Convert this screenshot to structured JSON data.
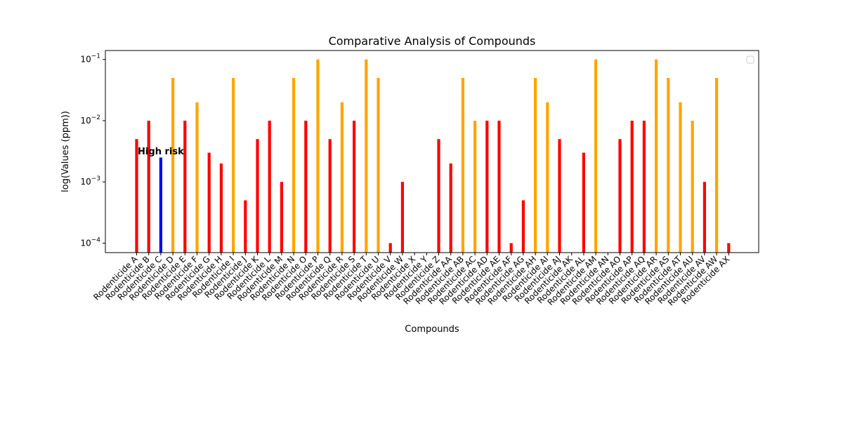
{
  "chart_data": {
    "type": "bar",
    "title": "Comparative Analysis of Compounds",
    "xlabel": "Compounds",
    "ylabel": "log(Values (ppm))",
    "yscale": "log",
    "ylim": [
      7e-05,
      0.14
    ],
    "yticks": [
      {
        "value": 0.0001,
        "base": "10",
        "exp": "−4"
      },
      {
        "value": 0.001,
        "base": "10",
        "exp": "−3"
      },
      {
        "value": 0.01,
        "base": "10",
        "exp": "−2"
      },
      {
        "value": 0.1,
        "base": "10",
        "exp": "−1"
      }
    ],
    "legend": "top-right",
    "grid": false,
    "categories": [
      "Rodenticide A",
      "Rodenticide B",
      "Rodenticide C",
      "Rodenticide D",
      "Rodenticide E",
      "Rodenticide F",
      "Rodenticide G",
      "Rodenticide H",
      "Rodenticide I",
      "Rodenticide J",
      "Rodenticide K",
      "Rodenticide L",
      "Rodenticide M",
      "Rodenticide N",
      "Rodenticide O",
      "Rodenticide P",
      "Rodenticide Q",
      "Rodenticide R",
      "Rodenticide S",
      "Rodenticide T",
      "Rodenticide U",
      "Rodenticide V",
      "Rodenticide W",
      "Rodenticide X",
      "Rodenticide Y",
      "Rodenticide Z",
      "Rodenticide AA",
      "Rodenticide AB",
      "Rodenticide AC",
      "Rodenticide AD",
      "Rodenticide AE",
      "Rodenticide AF",
      "Rodenticide AG",
      "Rodenticide AH",
      "Rodenticide AI",
      "Rodenticide AJ",
      "Rodenticide AK",
      "Rodenticide AL",
      "Rodenticide AM",
      "Rodenticide AN",
      "Rodenticide AO",
      "Rodenticide AP",
      "Rodenticide AQ",
      "Rodenticide AR",
      "Rodenticide AS",
      "Rodenticide AT",
      "Rodenticide AU",
      "Rodenticide AV",
      "Rodenticide AW",
      "Rodenticide AX"
    ],
    "values": [
      0.005,
      0.01,
      0.0025,
      0.05,
      0.01,
      0.02,
      0.003,
      0.002,
      0.05,
      0.0005,
      0.005,
      0.01,
      0.001,
      0.05,
      0.01,
      0.1,
      0.005,
      0.02,
      0.01,
      0.1,
      0.05,
      0.0001,
      0.001,
      null,
      null,
      0.005,
      0.002,
      0.05,
      0.01,
      0.01,
      0.01,
      0.0001,
      0.0005,
      0.05,
      0.02,
      0.005,
      null,
      0.003,
      0.1,
      null,
      0.005,
      0.01,
      0.01,
      0.1,
      0.05,
      0.02,
      0.01,
      0.001,
      0.05,
      0.0001
    ],
    "colors": [
      "#ff0000",
      "#ff0000",
      "#0000ff",
      "#ffa500",
      "#ff0000",
      "#ffa500",
      "#ff0000",
      "#ff0000",
      "#ffa500",
      "#ff0000",
      "#ff0000",
      "#ff0000",
      "#ff0000",
      "#ffa500",
      "#ff0000",
      "#ffa500",
      "#ff0000",
      "#ffa500",
      "#ff0000",
      "#ffa500",
      "#ffa500",
      "#ff0000",
      "#ff0000",
      "#ff0000",
      "#ff0000",
      "#ff0000",
      "#ff0000",
      "#ffa500",
      "#ffa500",
      "#ff0000",
      "#ff0000",
      "#ff0000",
      "#ff0000",
      "#ffa500",
      "#ffa500",
      "#ff0000",
      "#ff0000",
      "#ff0000",
      "#ffa500",
      "#ff0000",
      "#ff0000",
      "#ff0000",
      "#ff0000",
      "#ffa500",
      "#ffa500",
      "#ffa500",
      "#ffa500",
      "#ff0000",
      "#ffa500",
      "#ff0000"
    ],
    "annotations": [
      {
        "text": "High risk",
        "category": "Rodenticide C",
        "value": 0.0028
      }
    ]
  }
}
